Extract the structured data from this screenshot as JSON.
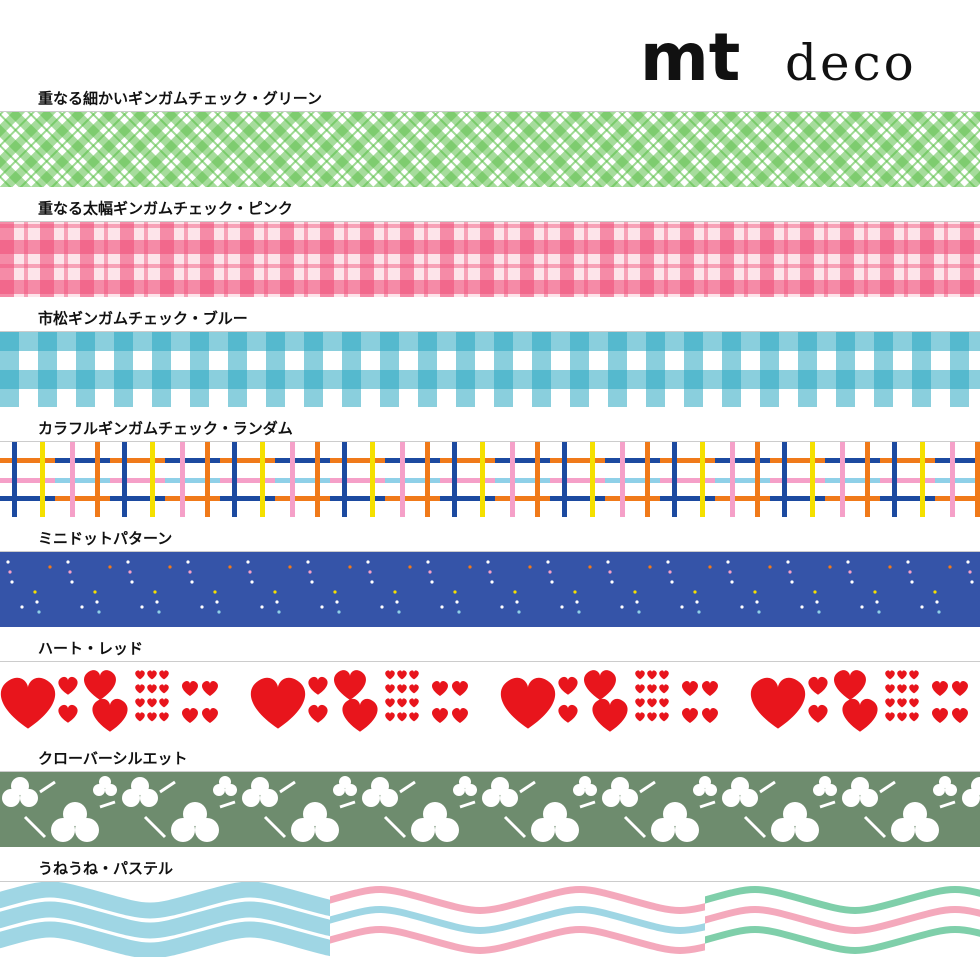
{
  "brand": {
    "mark": "mt",
    "line": "deco"
  },
  "tapes": [
    {
      "label": "重なる細かいギンガムチェック・グリーン"
    },
    {
      "label": "重なる太幅ギンガムチェック・ピンク"
    },
    {
      "label": "市松ギンガムチェック・ブルー"
    },
    {
      "label": "カラフルギンガムチェック・ランダム"
    },
    {
      "label": "ミニドットパターン"
    },
    {
      "label": "ハート・レッド"
    },
    {
      "label": "クローバーシルエット"
    },
    {
      "label": "うねうね・パステル"
    }
  ]
}
